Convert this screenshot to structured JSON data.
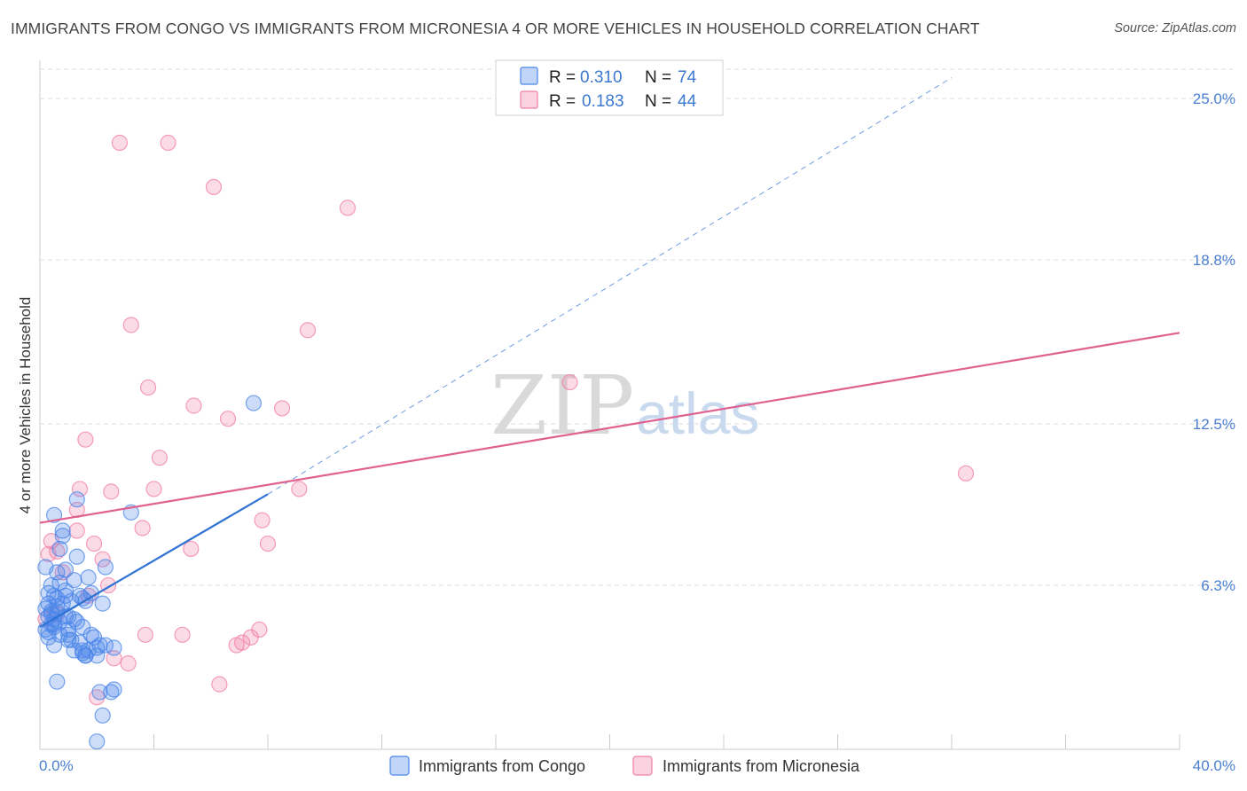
{
  "title": "IMMIGRANTS FROM CONGO VS IMMIGRANTS FROM MICRONESIA 4 OR MORE VEHICLES IN HOUSEHOLD CORRELATION CHART",
  "source": "Source: ZipAtlas.com",
  "watermark": {
    "zip": "ZIP",
    "atlas": "atlas"
  },
  "colors": {
    "congo": "#4a86e8",
    "congo_line": "#2f72d4",
    "micronesia": "#f07fa6",
    "micronesia_line": "#e06090",
    "tick": "#4a7fd0"
  },
  "stats": [
    {
      "r_label": "R =",
      "r": "0.310",
      "n_label": "N =",
      "n": "74"
    },
    {
      "r_label": "R =",
      "r": "0.183",
      "n_label": "N =",
      "n": "44"
    }
  ],
  "chart_data": {
    "type": "scatter",
    "title": "IMMIGRANTS FROM CONGO VS IMMIGRANTS FROM MICRONESIA 4 OR MORE VEHICLES IN HOUSEHOLD CORRELATION CHART",
    "xlabel": "",
    "ylabel": "4 or more Vehicles in Household",
    "xlim": [
      0,
      40
    ],
    "ylim": [
      0,
      26.4
    ],
    "x_tick_labels": [
      "0.0%",
      "40.0%"
    ],
    "y_ticks": [
      6.3,
      12.5,
      18.8,
      25.0
    ],
    "y_tick_labels": [
      "6.3%",
      "12.5%",
      "18.8%",
      "25.0%"
    ],
    "grid": true,
    "legend_position": "bottom-center",
    "series": [
      {
        "name": "Immigrants from Congo",
        "r": 0.31,
        "n": 74,
        "points": [
          [
            0.2,
            7.0
          ],
          [
            0.3,
            6.0
          ],
          [
            0.3,
            5.6
          ],
          [
            0.4,
            5.2
          ],
          [
            0.4,
            4.8
          ],
          [
            0.2,
            4.6
          ],
          [
            0.3,
            4.3
          ],
          [
            0.5,
            4.0
          ],
          [
            0.5,
            5.0
          ],
          [
            0.6,
            5.3
          ],
          [
            0.6,
            5.8
          ],
          [
            0.7,
            6.4
          ],
          [
            0.7,
            7.7
          ],
          [
            0.8,
            8.4
          ],
          [
            0.9,
            6.9
          ],
          [
            0.9,
            5.9
          ],
          [
            1.0,
            5.1
          ],
          [
            1.0,
            4.4
          ],
          [
            1.1,
            4.2
          ],
          [
            1.2,
            6.5
          ],
          [
            1.3,
            7.4
          ],
          [
            1.3,
            9.6
          ],
          [
            1.4,
            5.9
          ],
          [
            1.5,
            4.7
          ],
          [
            1.5,
            3.8
          ],
          [
            1.6,
            3.6
          ],
          [
            1.7,
            6.6
          ],
          [
            1.8,
            6.0
          ],
          [
            1.9,
            4.3
          ],
          [
            2.0,
            3.9
          ],
          [
            2.0,
            3.6
          ],
          [
            2.1,
            4.0
          ],
          [
            2.2,
            5.6
          ],
          [
            2.3,
            7.0
          ],
          [
            2.3,
            4.0
          ],
          [
            0.5,
            9.0
          ],
          [
            0.8,
            8.2
          ],
          [
            0.4,
            6.3
          ],
          [
            0.6,
            5.5
          ],
          [
            0.9,
            5.1
          ],
          [
            1.0,
            4.6
          ],
          [
            1.2,
            3.8
          ],
          [
            1.4,
            4.1
          ],
          [
            1.6,
            5.7
          ],
          [
            1.8,
            4.4
          ],
          [
            0.3,
            5.1
          ],
          [
            0.4,
            5.3
          ],
          [
            0.5,
            4.7
          ],
          [
            0.7,
            4.4
          ],
          [
            0.9,
            6.1
          ],
          [
            1.1,
            5.7
          ],
          [
            1.3,
            4.9
          ],
          [
            0.6,
            6.8
          ],
          [
            0.2,
            5.4
          ],
          [
            0.3,
            4.5
          ],
          [
            0.5,
            5.9
          ],
          [
            0.7,
            4.9
          ],
          [
            1.5,
            3.7
          ],
          [
            1.7,
            3.8
          ],
          [
            2.1,
            2.2
          ],
          [
            2.6,
            2.3
          ],
          [
            3.2,
            9.1
          ],
          [
            2.6,
            3.9
          ],
          [
            7.5,
            13.3
          ],
          [
            0.6,
            2.6
          ],
          [
            1.6,
            3.6
          ],
          [
            1.2,
            5.0
          ],
          [
            1.0,
            4.2
          ],
          [
            0.8,
            5.6
          ],
          [
            0.5,
            4.8
          ],
          [
            2.2,
            1.3
          ],
          [
            2.5,
            2.2
          ],
          [
            1.5,
            5.8
          ],
          [
            2.0,
            0.3
          ]
        ]
      },
      {
        "name": "Immigrants from Micronesia",
        "r": 0.183,
        "n": 44,
        "points": [
          [
            2.8,
            23.3
          ],
          [
            4.5,
            23.3
          ],
          [
            6.1,
            21.6
          ],
          [
            10.8,
            20.8
          ],
          [
            3.2,
            16.3
          ],
          [
            9.4,
            16.1
          ],
          [
            3.8,
            13.9
          ],
          [
            5.4,
            13.2
          ],
          [
            6.6,
            12.7
          ],
          [
            8.5,
            13.1
          ],
          [
            1.6,
            11.9
          ],
          [
            4.2,
            11.2
          ],
          [
            1.4,
            10.0
          ],
          [
            2.5,
            9.9
          ],
          [
            4.0,
            10.0
          ],
          [
            9.1,
            10.0
          ],
          [
            1.3,
            9.2
          ],
          [
            1.3,
            8.4
          ],
          [
            3.6,
            8.5
          ],
          [
            7.8,
            8.8
          ],
          [
            0.4,
            8.0
          ],
          [
            0.6,
            7.6
          ],
          [
            1.9,
            7.9
          ],
          [
            8.0,
            7.9
          ],
          [
            0.3,
            7.5
          ],
          [
            2.2,
            7.3
          ],
          [
            5.3,
            7.7
          ],
          [
            0.8,
            6.8
          ],
          [
            2.4,
            6.3
          ],
          [
            1.7,
            5.9
          ],
          [
            0.6,
            5.2
          ],
          [
            3.7,
            4.4
          ],
          [
            5.0,
            4.4
          ],
          [
            7.7,
            4.6
          ],
          [
            7.4,
            4.3
          ],
          [
            7.1,
            4.1
          ],
          [
            6.9,
            4.0
          ],
          [
            2.6,
            3.5
          ],
          [
            3.1,
            3.3
          ],
          [
            6.3,
            2.5
          ],
          [
            2.0,
            2.0
          ],
          [
            18.6,
            14.1
          ],
          [
            32.5,
            10.6
          ],
          [
            0.2,
            5.0
          ]
        ]
      }
    ],
    "trend_lines": [
      {
        "series": "Immigrants from Congo",
        "x": [
          0.0,
          8.0
        ],
        "y": [
          4.7,
          9.8
        ],
        "dashed_extension_to": [
          32.0,
          25.8
        ]
      },
      {
        "series": "Immigrants from Micronesia",
        "x": [
          0.0,
          40.0
        ],
        "y": [
          8.7,
          16.0
        ]
      }
    ]
  }
}
